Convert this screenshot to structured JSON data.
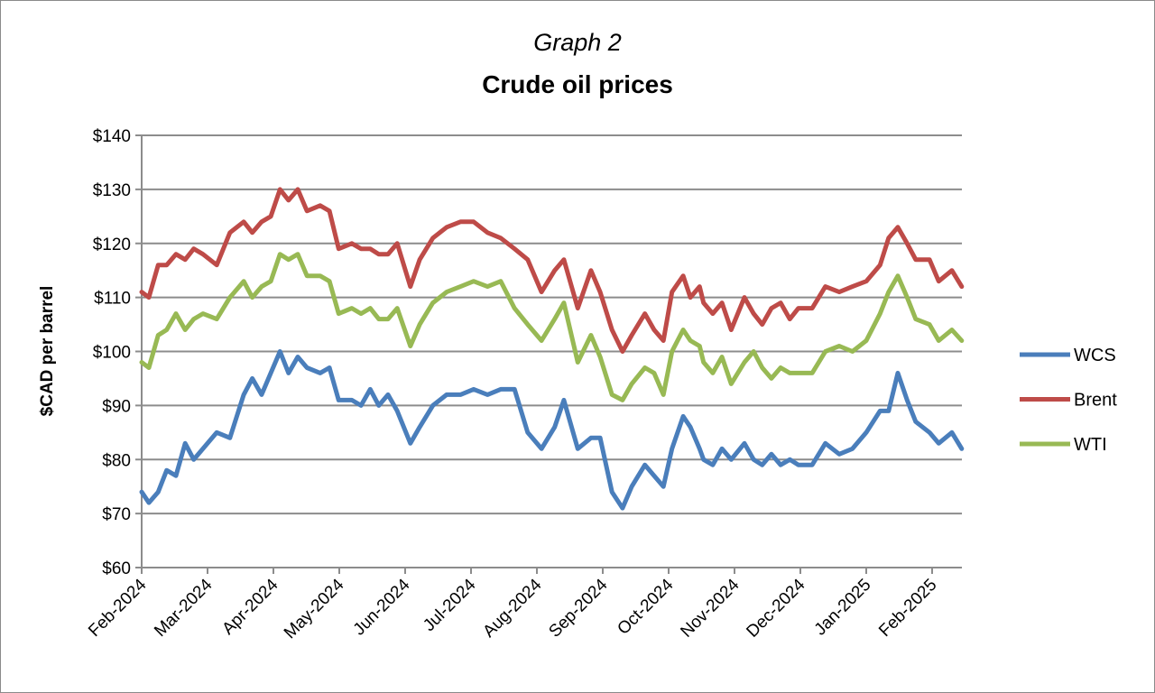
{
  "chart_data": {
    "type": "line",
    "title": "Graph 2",
    "subtitle": "Crude oil prices",
    "xlabel": "",
    "ylabel": "$CAD per barrel",
    "ylim": [
      60,
      140
    ],
    "yticks": [
      60,
      70,
      80,
      90,
      100,
      110,
      120,
      130,
      140
    ],
    "ytick_labels": [
      "$60",
      "$70",
      "$80",
      "$90",
      "$100",
      "$110",
      "$120",
      "$130",
      "$140"
    ],
    "xlim": [
      0,
      12.45
    ],
    "x_unit": "months since Feb-2024",
    "xtick_labels": [
      "Feb-2024",
      "Mar-2024",
      "Apr-2024",
      "May-2024",
      "Jun-2024",
      "Jul-2024",
      "Aug-2024",
      "Sep-2024",
      "Oct-2024",
      "Nov-2024",
      "Dec-2024",
      "Jan-2025",
      "Feb-2025"
    ],
    "grid": "horizontal",
    "legend_position": "right",
    "x": [
      0,
      0.11,
      0.25,
      0.38,
      0.52,
      0.66,
      0.79,
      0.93,
      1.14,
      1.34,
      1.55,
      1.68,
      1.82,
      1.96,
      2.1,
      2.23,
      2.37,
      2.51,
      2.71,
      2.85,
      2.99,
      3.19,
      3.33,
      3.47,
      3.6,
      3.74,
      3.88,
      4.08,
      4.22,
      4.42,
      4.63,
      4.84,
      5.04,
      5.25,
      5.45,
      5.66,
      5.86,
      6.07,
      6.27,
      6.41,
      6.62,
      6.82,
      6.96,
      7.14,
      7.3,
      7.44,
      7.64,
      7.78,
      7.92,
      8.05,
      8.22,
      8.33,
      8.47,
      8.53,
      8.67,
      8.81,
      8.95,
      9.15,
      9.29,
      9.42,
      9.56,
      9.7,
      9.84,
      9.97,
      10.18,
      10.38,
      10.59,
      10.79,
      11.0,
      11.21,
      11.34,
      11.48,
      11.62,
      11.75,
      11.96,
      12.1,
      12.3,
      12.45
    ],
    "series": [
      {
        "name": "WCS",
        "color": "#4a7ebb",
        "values": [
          74,
          72,
          74,
          78,
          77,
          83,
          80,
          82,
          85,
          84,
          92,
          95,
          92,
          96,
          100,
          96,
          99,
          97,
          96,
          97,
          91,
          91,
          90,
          93,
          90,
          92,
          89,
          83,
          86,
          90,
          92,
          92,
          93,
          92,
          93,
          93,
          85,
          82,
          86,
          91,
          82,
          84,
          84,
          74,
          71,
          75,
          79,
          77,
          75,
          82,
          88,
          86,
          82,
          80,
          79,
          82,
          80,
          83,
          80,
          79,
          81,
          79,
          80,
          79,
          79,
          83,
          81,
          82,
          85,
          89,
          89,
          96,
          91,
          87,
          85,
          83,
          85,
          82
        ]
      },
      {
        "name": "Brent",
        "color": "#be4b48",
        "values": [
          111,
          110,
          116,
          116,
          118,
          117,
          119,
          118,
          116,
          122,
          124,
          122,
          124,
          125,
          130,
          128,
          130,
          126,
          127,
          126,
          119,
          120,
          119,
          119,
          118,
          118,
          120,
          112,
          117,
          121,
          123,
          124,
          124,
          122,
          121,
          119,
          117,
          111,
          115,
          117,
          108,
          115,
          111,
          104,
          100,
          103,
          107,
          104,
          102,
          111,
          114,
          110,
          112,
          109,
          107,
          109,
          104,
          110,
          107,
          105,
          108,
          109,
          106,
          108,
          108,
          112,
          111,
          112,
          113,
          116,
          121,
          123,
          120,
          117,
          117,
          113,
          115,
          112
        ]
      },
      {
        "name": "WTI",
        "color": "#98b954",
        "values": [
          98,
          97,
          103,
          104,
          107,
          104,
          106,
          107,
          106,
          110,
          113,
          110,
          112,
          113,
          118,
          117,
          118,
          114,
          114,
          113,
          107,
          108,
          107,
          108,
          106,
          106,
          108,
          101,
          105,
          109,
          111,
          112,
          113,
          112,
          113,
          108,
          105,
          102,
          106,
          109,
          98,
          103,
          99,
          92,
          91,
          94,
          97,
          96,
          92,
          100,
          104,
          102,
          101,
          98,
          96,
          99,
          94,
          98,
          100,
          97,
          95,
          97,
          96,
          96,
          96,
          100,
          101,
          100,
          102,
          107,
          111,
          114,
          110,
          106,
          105,
          102,
          104,
          102
        ]
      }
    ]
  }
}
